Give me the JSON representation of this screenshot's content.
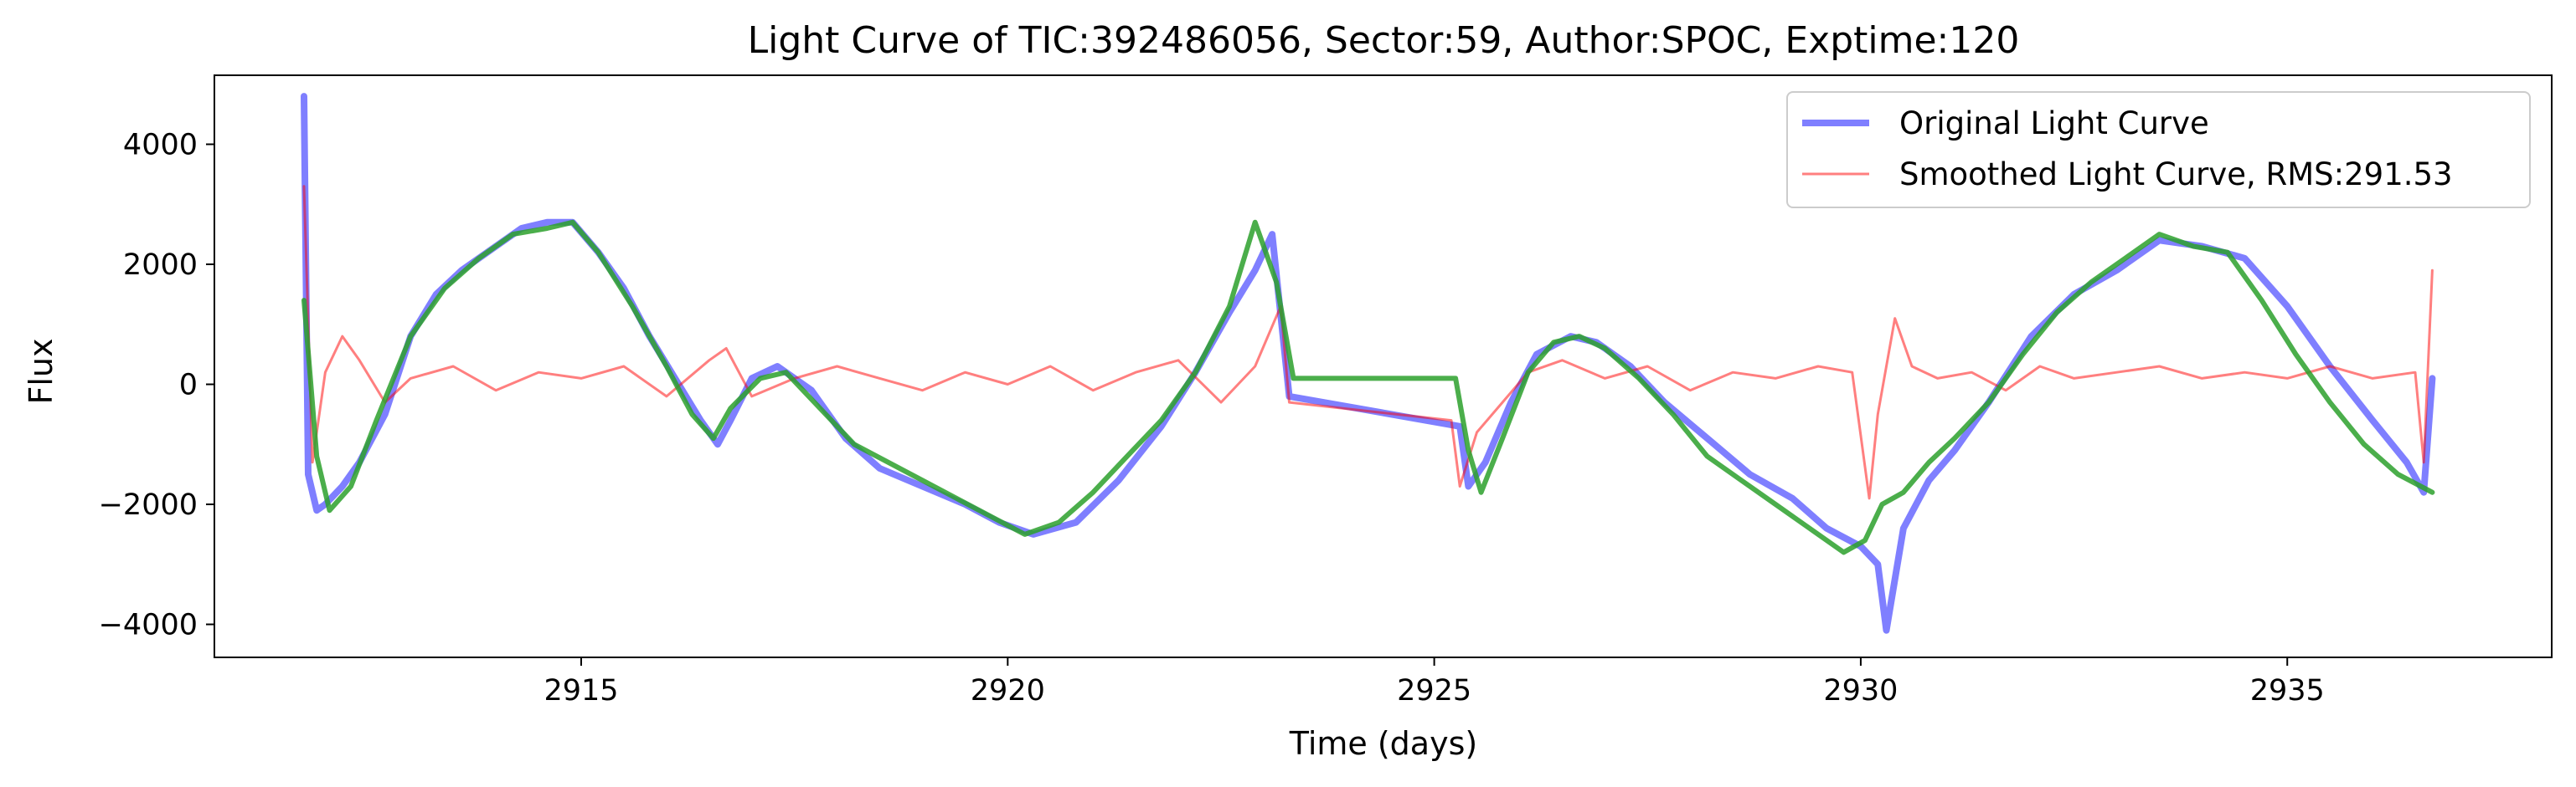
{
  "chart_data": {
    "type": "line",
    "title": "Light Curve of TIC:392486056, Sector:59, Author:SPOC, Exptime:120",
    "xlabel": "Time (days)",
    "ylabel": "Flux",
    "xlim": [
      2910.7,
      2938.1
    ],
    "ylim": [
      -4550,
      5150
    ],
    "xticks": [
      2915,
      2920,
      2925,
      2930,
      2935
    ],
    "yticks": [
      -4000,
      -2000,
      0,
      2000,
      4000
    ],
    "ytick_labels": [
      "−4000",
      "−2000",
      "0",
      "2000",
      "4000"
    ],
    "grid": false,
    "legend_position": "top-right",
    "colors": {
      "original": "#0000ff",
      "smoothed": "#ff0000",
      "fit": "#2ca02c"
    },
    "series": [
      {
        "name": "Original Light Curve",
        "role": "original",
        "x": [
          2911.75,
          2911.8,
          2911.9,
          2912.0,
          2912.2,
          2912.4,
          2912.7,
          2913.0,
          2913.3,
          2913.6,
          2914.0,
          2914.3,
          2914.6,
          2914.9,
          2915.2,
          2915.5,
          2915.8,
          2916.1,
          2916.4,
          2916.6,
          2916.75,
          2917.0,
          2917.3,
          2917.7,
          2918.1,
          2918.5,
          2919.0,
          2919.5,
          2919.9,
          2920.3,
          2920.8,
          2921.3,
          2921.8,
          2922.2,
          2922.6,
          2922.9,
          2923.1,
          2923.3,
          2925.3,
          2925.4,
          2925.6,
          2925.9,
          2926.2,
          2926.6,
          2926.9,
          2927.3,
          2927.7,
          2928.2,
          2928.7,
          2929.2,
          2929.6,
          2930.0,
          2930.2,
          2930.3,
          2930.5,
          2930.8,
          2931.1,
          2931.5,
          2932.0,
          2932.5,
          2933.0,
          2933.5,
          2934.0,
          2934.5,
          2935.0,
          2935.5,
          2936.0,
          2936.4,
          2936.6,
          2936.7
        ],
        "values": [
          4800,
          -1500,
          -2100,
          -2000,
          -1700,
          -1300,
          -500,
          800,
          1500,
          1900,
          2300,
          2600,
          2700,
          2700,
          2200,
          1600,
          800,
          100,
          -600,
          -1000,
          -600,
          100,
          300,
          -100,
          -900,
          -1400,
          -1700,
          -2000,
          -2300,
          -2500,
          -2300,
          -1600,
          -700,
          200,
          1200,
          1900,
          2500,
          -200,
          -700,
          -1700,
          -1300,
          -300,
          500,
          800,
          700,
          300,
          -300,
          -900,
          -1500,
          -1900,
          -2400,
          -2700,
          -3000,
          -4100,
          -2400,
          -1600,
          -1100,
          -300,
          800,
          1500,
          1900,
          2400,
          2300,
          2100,
          1300,
          300,
          -600,
          -1300,
          -1800,
          100
        ]
      },
      {
        "name": "Smoothed Light Curve, RMS:291.53",
        "role": "smoothed",
        "x": [
          2911.75,
          2911.85,
          2912.0,
          2912.2,
          2912.4,
          2912.7,
          2913.0,
          2913.5,
          2914.0,
          2914.5,
          2915.0,
          2915.5,
          2916.0,
          2916.5,
          2916.7,
          2917.0,
          2917.5,
          2918.0,
          2918.5,
          2919.0,
          2919.5,
          2920.0,
          2920.5,
          2921.0,
          2921.5,
          2922.0,
          2922.5,
          2922.9,
          2923.2,
          2923.3,
          2925.2,
          2925.3,
          2925.5,
          2925.8,
          2926.1,
          2926.5,
          2927.0,
          2927.5,
          2928.0,
          2928.5,
          2929.0,
          2929.5,
          2929.9,
          2930.1,
          2930.2,
          2930.4,
          2930.6,
          2930.9,
          2931.3,
          2931.7,
          2932.1,
          2932.5,
          2933.0,
          2933.5,
          2934.0,
          2934.5,
          2935.0,
          2935.5,
          2936.0,
          2936.5,
          2936.6,
          2936.7
        ],
        "values": [
          3300,
          -1300,
          200,
          800,
          400,
          -300,
          100,
          300,
          -100,
          200,
          100,
          300,
          -200,
          400,
          600,
          -200,
          100,
          300,
          100,
          -100,
          200,
          0,
          300,
          -100,
          200,
          400,
          -300,
          300,
          1300,
          -300,
          -600,
          -1700,
          -800,
          -300,
          200,
          400,
          100,
          300,
          -100,
          200,
          100,
          300,
          200,
          -1900,
          -500,
          1100,
          300,
          100,
          200,
          -100,
          300,
          100,
          200,
          300,
          100,
          200,
          100,
          300,
          100,
          200,
          -1300,
          1900
        ]
      },
      {
        "name": "",
        "role": "fit",
        "x": [
          2911.75,
          2911.9,
          2912.05,
          2912.3,
          2912.6,
          2913.0,
          2913.4,
          2913.8,
          2914.2,
          2914.6,
          2914.9,
          2915.2,
          2915.6,
          2916.0,
          2916.3,
          2916.55,
          2916.75,
          2917.1,
          2917.4,
          2917.8,
          2918.2,
          2918.6,
          2919.0,
          2919.4,
          2919.8,
          2920.2,
          2920.6,
          2921.0,
          2921.4,
          2921.8,
          2922.2,
          2922.6,
          2922.9,
          2923.15,
          2923.35,
          2925.25,
          2925.4,
          2925.55,
          2925.8,
          2926.1,
          2926.4,
          2926.7,
          2927.0,
          2927.4,
          2927.8,
          2928.2,
          2928.6,
          2929.0,
          2929.4,
          2929.8,
          2930.05,
          2930.25,
          2930.5,
          2930.8,
          2931.1,
          2931.5,
          2931.9,
          2932.3,
          2932.7,
          2933.1,
          2933.5,
          2933.9,
          2934.3,
          2934.7,
          2935.1,
          2935.5,
          2935.9,
          2936.3,
          2936.7
        ],
        "values": [
          1400,
          -1200,
          -2100,
          -1700,
          -600,
          800,
          1600,
          2100,
          2500,
          2600,
          2700,
          2200,
          1300,
          300,
          -500,
          -900,
          -400,
          100,
          200,
          -400,
          -1000,
          -1300,
          -1600,
          -1900,
          -2200,
          -2500,
          -2300,
          -1800,
          -1200,
          -600,
          200,
          1300,
          2700,
          1700,
          100,
          100,
          -1100,
          -1800,
          -900,
          200,
          700,
          800,
          600,
          100,
          -500,
          -1200,
          -1600,
          -2000,
          -2400,
          -2800,
          -2600,
          -2000,
          -1800,
          -1300,
          -900,
          -300,
          500,
          1200,
          1700,
          2100,
          2500,
          2300,
          2200,
          1400,
          500,
          -300,
          -1000,
          -1500,
          -1800
        ]
      }
    ]
  }
}
